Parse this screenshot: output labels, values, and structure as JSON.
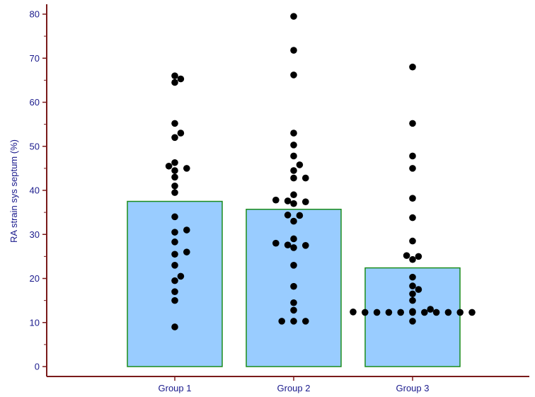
{
  "chart_data": {
    "type": "bar",
    "title": "",
    "xlabel": "",
    "ylabel": "RA strain sys septum (%)",
    "ylim": [
      0,
      80
    ],
    "yticks": [
      0,
      10,
      20,
      30,
      40,
      50,
      60,
      70,
      80
    ],
    "grid": false,
    "categories": [
      "Group 1",
      "Group 2",
      "Group 3"
    ],
    "values": [
      37.5,
      35.7,
      22.4
    ],
    "points": [
      [
        9,
        15,
        17,
        19.5,
        20.5,
        23,
        25.5,
        26,
        28.3,
        30.5,
        31,
        34,
        39.5,
        41,
        43,
        44.5,
        45,
        45.5,
        46.3,
        52,
        53,
        55.2,
        64.5,
        65.3,
        66
      ],
      [
        10.3,
        10.3,
        10.3,
        12.8,
        14.5,
        18.2,
        23,
        27,
        27.5,
        27.6,
        28,
        29,
        33,
        34.3,
        34.4,
        37,
        37.4,
        37.6,
        37.8,
        39,
        42.8,
        42.8,
        44.5,
        45.8,
        47.8,
        50.3,
        53,
        66.2,
        71.8,
        79.5
      ],
      [
        10.3,
        12.3,
        12.3,
        12.3,
        12.3,
        12.3,
        12.3,
        12.3,
        12.3,
        12.3,
        12.3,
        12.4,
        12.5,
        13,
        15,
        16.5,
        17.5,
        18.3,
        20.3,
        24.3,
        25,
        25.2,
        28.5,
        33.8,
        38.2,
        45,
        47.8,
        55.2,
        68
      ]
    ],
    "colors": {
      "bar_fill": "#99ccff",
      "bar_stroke": "#1a8c1a",
      "dot": "#000000",
      "axis": "#7a1a1a",
      "text": "#1a1a8c"
    }
  }
}
